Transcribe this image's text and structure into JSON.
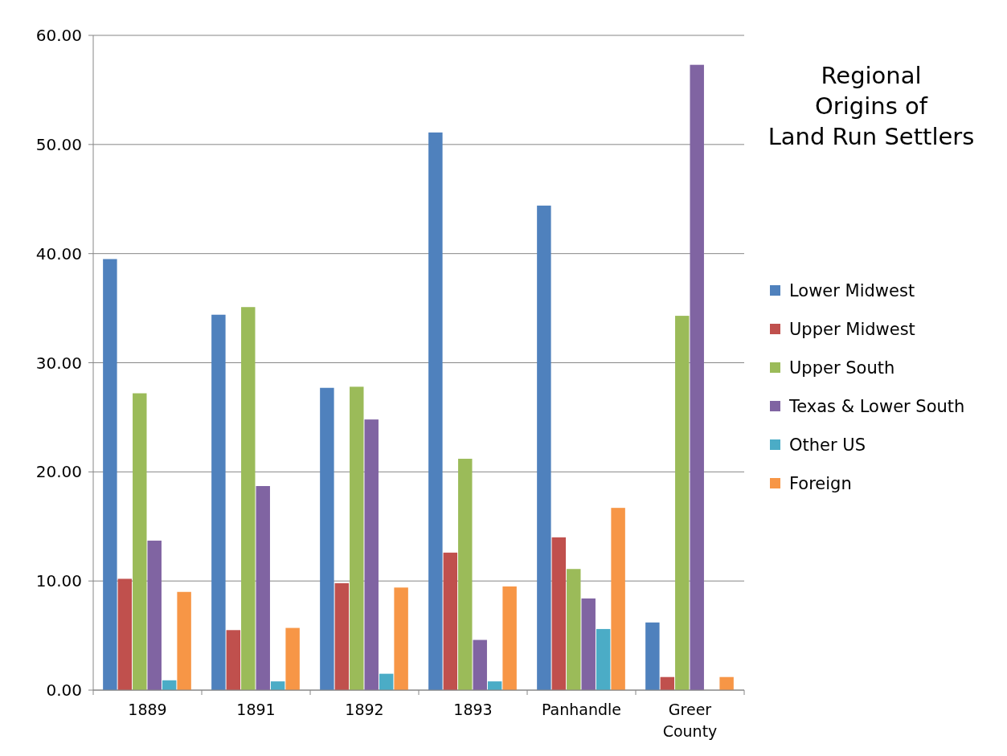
{
  "chart_data": {
    "type": "bar",
    "title": "Regional Origins of Land Run Settlers",
    "categories": [
      "1889",
      "1891",
      "1892",
      "1893",
      "Panhandle",
      "Greer County"
    ],
    "series": [
      {
        "name": "Lower Midwest",
        "color": "#4f81bd",
        "values": [
          39.5,
          34.4,
          27.7,
          51.1,
          44.4,
          6.2
        ]
      },
      {
        "name": "Upper Midwest",
        "color": "#c0504d",
        "values": [
          10.2,
          5.5,
          9.8,
          12.6,
          14.0,
          1.2
        ]
      },
      {
        "name": "Upper South",
        "color": "#9bbb59",
        "values": [
          27.2,
          35.1,
          27.8,
          21.2,
          11.1,
          34.3
        ]
      },
      {
        "name": "Texas & Lower South",
        "color": "#8064a2",
        "values": [
          13.7,
          18.7,
          24.8,
          4.6,
          8.4,
          57.3
        ]
      },
      {
        "name": "Other US",
        "color": "#4bacc6",
        "values": [
          0.9,
          0.8,
          1.5,
          0.8,
          5.6,
          0
        ]
      },
      {
        "name": "Foreign",
        "color": "#f79646",
        "values": [
          9.0,
          5.7,
          9.4,
          9.5,
          16.7,
          1.2
        ]
      }
    ],
    "ylim": [
      0,
      60
    ],
    "yticks": [
      {
        "value": 0,
        "label": "0.00"
      },
      {
        "value": 10,
        "label": "10.00"
      },
      {
        "value": 20,
        "label": "20.00"
      },
      {
        "value": 30,
        "label": "30.00"
      },
      {
        "value": 40,
        "label": "40.00"
      },
      {
        "value": 50,
        "label": "50.00"
      },
      {
        "value": 60,
        "label": "60.00"
      }
    ],
    "grid": "y",
    "legend": "right"
  }
}
